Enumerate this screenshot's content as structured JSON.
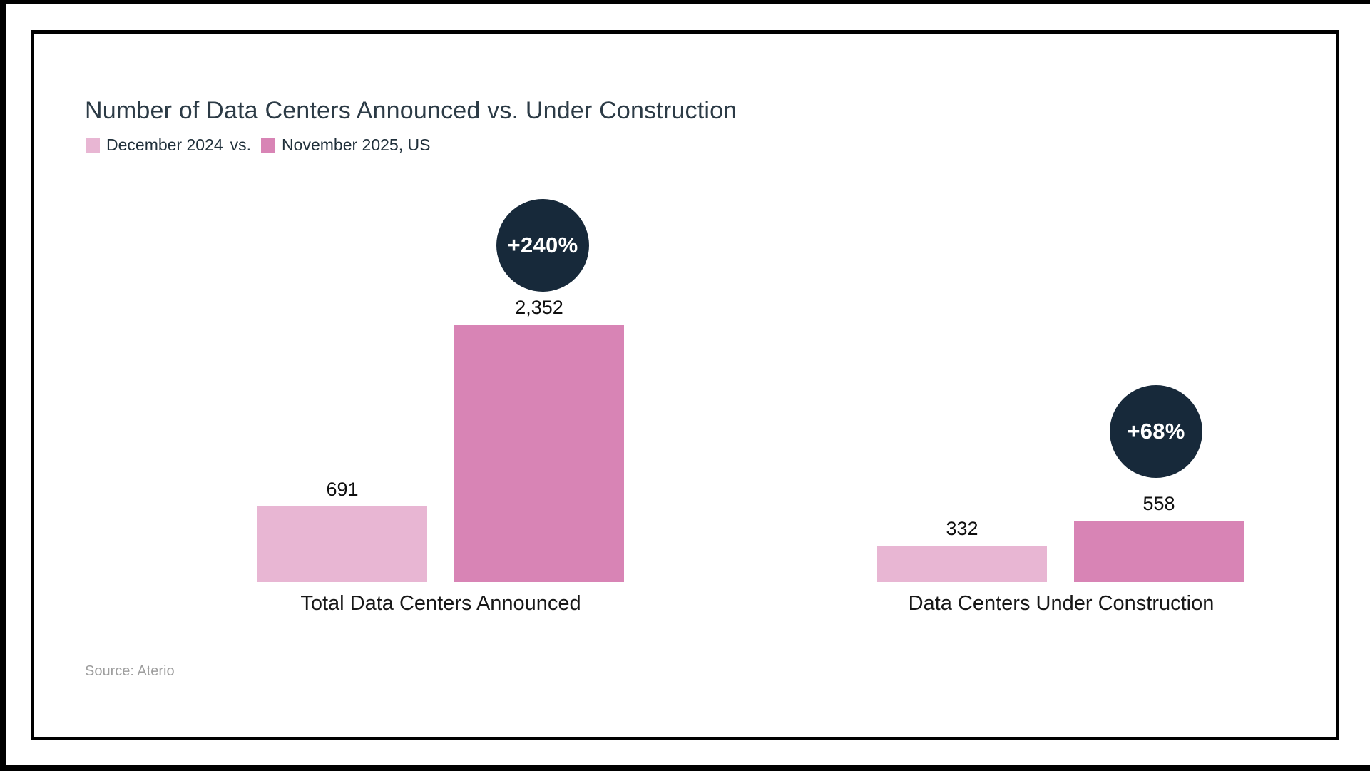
{
  "title": "Number of Data Centers Announced vs. Under Construction",
  "legend": {
    "series1": "December 2024",
    "separator": "vs.",
    "series2": "November 2025, US"
  },
  "source": "Source: Aterio",
  "colors": {
    "series1": "#e8b6d3",
    "series2": "#d884b5",
    "badge_bg": "#17293a",
    "badge_text": "#ffffff",
    "title_text": "#2c3b46"
  },
  "chart_data": {
    "type": "bar",
    "title": "Number of Data Centers Announced vs. Under Construction",
    "categories": [
      "Total Data Centers Announced",
      "Data Centers Under Construction"
    ],
    "series": [
      {
        "name": "December 2024",
        "values": [
          691,
          332
        ]
      },
      {
        "name": "November 2025, US",
        "values": [
          2352,
          558
        ]
      }
    ],
    "value_labels": [
      [
        "691",
        "332"
      ],
      [
        "2,352",
        "558"
      ]
    ],
    "change_badges": [
      "+240%",
      "+68%"
    ],
    "ylim": [
      0,
      2400
    ],
    "xlabel": "",
    "ylabel": "",
    "grid": false,
    "legend_position": "top-left",
    "value_axis_hidden": true
  }
}
